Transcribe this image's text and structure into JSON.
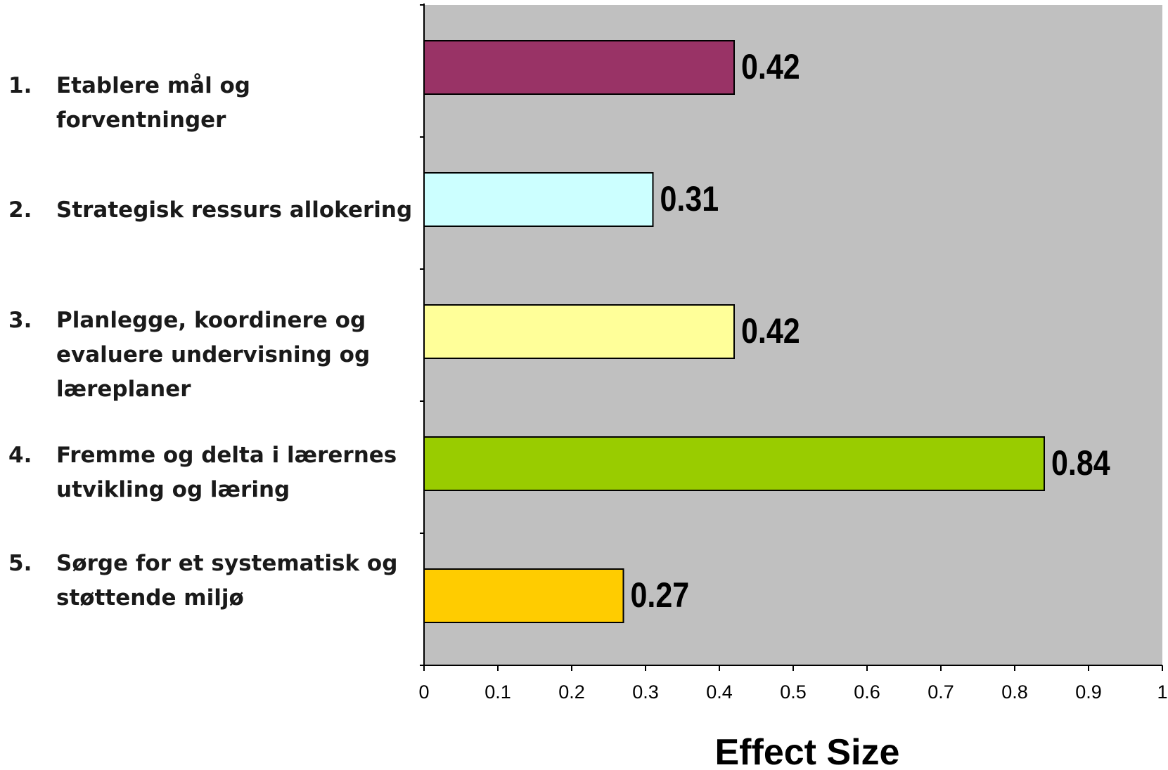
{
  "chart_data": {
    "type": "bar",
    "orientation": "horizontal",
    "categories": [
      {
        "number": "1.",
        "lines": [
          "Etablere mål og",
          "forventninger"
        ]
      },
      {
        "number": "2.",
        "lines": [
          "Strategisk ressurs allokering"
        ]
      },
      {
        "number": "3.",
        "lines": [
          "Planlegge, koordinere og",
          "evaluere undervisning og",
          "læreplaner"
        ]
      },
      {
        "number": "4.",
        "lines": [
          "Fremme og delta i lærernes",
          "utvikling og læring"
        ]
      },
      {
        "number": "5.",
        "lines": [
          "Sørge for et systematisk og",
          "støttende miljø"
        ]
      }
    ],
    "values": [
      0.42,
      0.31,
      0.42,
      0.84,
      0.27
    ],
    "value_labels": [
      "0.42",
      "0.31",
      "0.42",
      "0.84",
      "0.27"
    ],
    "bar_colors": [
      "#993366",
      "#ccffff",
      "#ffff99",
      "#99cc00",
      "#ffcc00"
    ],
    "plot_background": "#c0c0c0",
    "xlabel": "Effect Size",
    "xlim": [
      0,
      1
    ],
    "xticks": [
      "0",
      "0.1",
      "0.2",
      "0.3",
      "0.4",
      "0.5",
      "0.6",
      "0.7",
      "0.8",
      "0.9",
      "1"
    ],
    "grid": false,
    "legend": "none"
  }
}
